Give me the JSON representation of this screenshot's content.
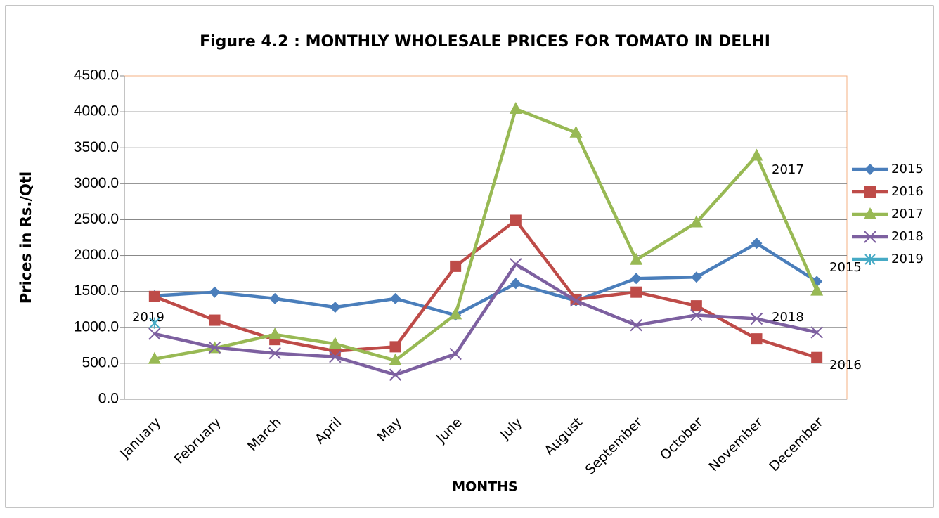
{
  "chart_data": {
    "type": "line",
    "title": "Figure 4.2 : MONTHLY WHOLESALE PRICES FOR TOMATO IN DELHI",
    "x_label": "MONTHS",
    "y_label": "Prices in Rs./Qtl",
    "categories": [
      "January",
      "February",
      "March",
      "April",
      "May",
      "June",
      "July",
      "August",
      "September",
      "October",
      "November",
      "December"
    ],
    "ylim": [
      0,
      4500
    ],
    "yticks": [
      {
        "value": 0,
        "label": "0.0"
      },
      {
        "value": 500,
        "label": "500.0"
      },
      {
        "value": 1000,
        "label": "1000.0"
      },
      {
        "value": 1500,
        "label": "1500.0"
      },
      {
        "value": 2000,
        "label": "2000.0"
      },
      {
        "value": 2500,
        "label": "2500.0"
      },
      {
        "value": 3000,
        "label": "3000.0"
      },
      {
        "value": 3500,
        "label": "3500.0"
      },
      {
        "value": 4000,
        "label": "4000.0"
      },
      {
        "value": 4500,
        "label": "4500.0"
      }
    ],
    "grid": true,
    "legend": "right",
    "series": [
      {
        "name": "2015",
        "color": "#4a7ebb",
        "marker": "diamond",
        "values": [
          1440,
          1490,
          1400,
          1280,
          1400,
          1170,
          1610,
          1370,
          1680,
          1700,
          2170,
          1640
        ]
      },
      {
        "name": "2016",
        "color": "#be4b48",
        "marker": "square",
        "values": [
          1430,
          1100,
          830,
          670,
          730,
          1850,
          2490,
          1390,
          1490,
          1300,
          840,
          580
        ]
      },
      {
        "name": "2017",
        "color": "#98b954",
        "marker": "triangle",
        "values": [
          560,
          710,
          900,
          770,
          540,
          1180,
          4040,
          3710,
          1940,
          2460,
          3390,
          1510
        ]
      },
      {
        "name": "2018",
        "color": "#7d60a0",
        "marker": "x",
        "values": [
          910,
          720,
          640,
          590,
          340,
          630,
          1880,
          1370,
          1030,
          1170,
          1120,
          930
        ]
      },
      {
        "name": "2019",
        "color": "#46aac5",
        "marker": "star",
        "values": [
          1060,
          null,
          null,
          null,
          null,
          null,
          null,
          null,
          null,
          null,
          null,
          null
        ]
      }
    ],
    "annotations": [
      "2019",
      "2017",
      "2015",
      "2018",
      "2016"
    ]
  }
}
